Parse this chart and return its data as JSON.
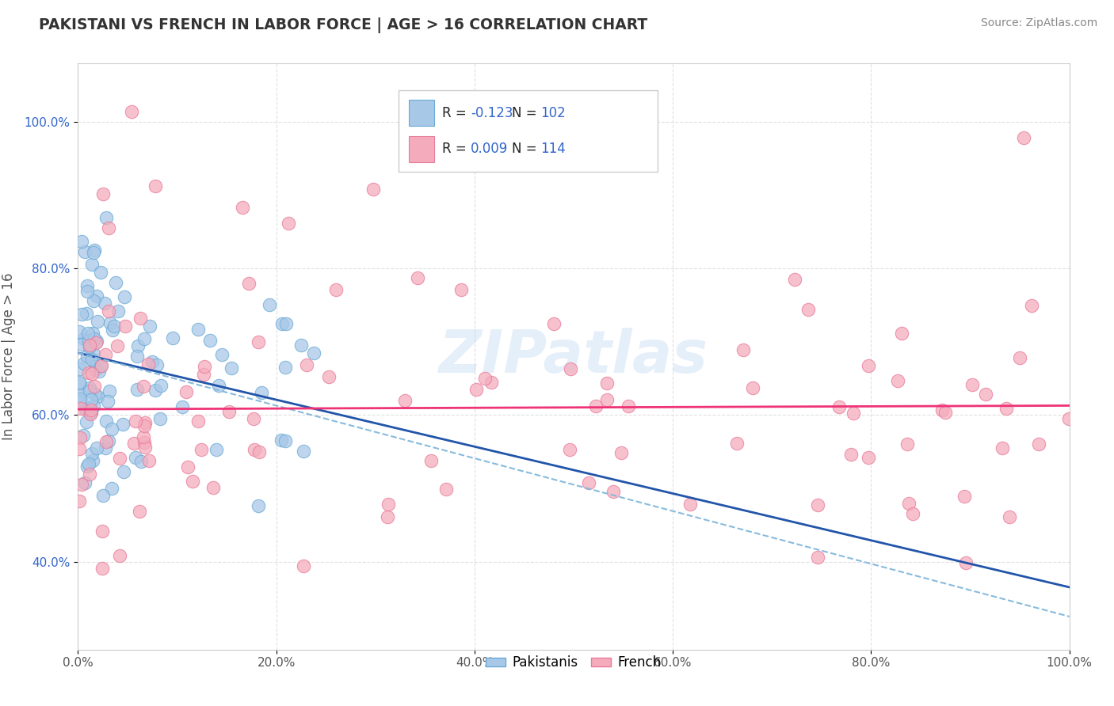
{
  "title": "PAKISTANI VS FRENCH IN LABOR FORCE | AGE > 16 CORRELATION CHART",
  "source_text": "Source: ZipAtlas.com",
  "ylabel": "In Labor Force | Age > 16",
  "xlim": [
    0.0,
    1.0
  ],
  "ylim": [
    0.28,
    1.08
  ],
  "yticks": [
    0.4,
    0.6,
    0.8,
    1.0
  ],
  "ytick_labels": [
    "40.0%",
    "60.0%",
    "80.0%",
    "100.0%"
  ],
  "xticks": [
    0.0,
    0.2,
    0.4,
    0.6,
    0.8,
    1.0
  ],
  "xtick_labels": [
    "0.0%",
    "20.0%",
    "40.0%",
    "60.0%",
    "80.0%",
    "100.0%"
  ],
  "blue_color": "#A8C8E8",
  "pink_color": "#F4ACBC",
  "blue_edge": "#6AAAD5",
  "pink_edge": "#E97A9A",
  "trend_blue_solid_color": "#2255AA",
  "trend_blue_dash_color": "#88BBDD",
  "trend_pink_color": "#EE3377",
  "R_blue": -0.123,
  "N_blue": 102,
  "R_pink": 0.009,
  "N_pink": 114,
  "watermark": "ZIPatlas",
  "background_color": "#FFFFFF",
  "grid_color": "#DDDDDD",
  "legend_color": "#3366CC",
  "title_color": "#333333",
  "ytick_color": "#3366CC",
  "xtick_color": "#555555"
}
